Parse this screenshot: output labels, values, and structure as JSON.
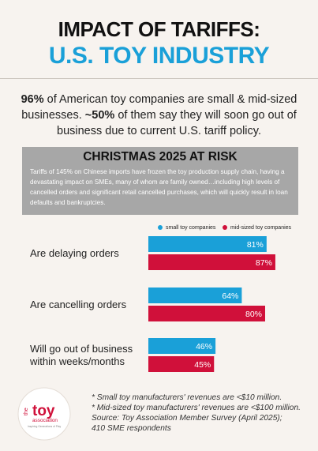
{
  "header": {
    "title_line1": "IMPACT OF TARIFFS:",
    "title_line2": "U.S. TOY INDUSTRY"
  },
  "lead": {
    "stat1": "96%",
    "text1": " of American toy companies are small & mid-sized businesses. ",
    "stat2": "~50%",
    "text2": " of them say they will soon go out of business due to current U.S. tariff policy."
  },
  "panel": {
    "title": "CHRISTMAS 2025 AT RISK",
    "body": "Tariffs of 145% on Chinese imports have frozen the toy production supply chain, having a devastating impact on SMEs, many of whom are family owned…including high levels of cancelled orders and significant retail cancelled purchases, which will quickly result in loan defaults and bankruptcies."
  },
  "colors": {
    "small": "#1aa0d8",
    "mid": "#d0103a",
    "title_blue": "#1aa0d8",
    "panel_bg": "#a7a7a7",
    "background": "#f7f3ef"
  },
  "chart_data": {
    "type": "bar",
    "orientation": "horizontal",
    "categories": [
      "Are delaying orders",
      "Are cancelling orders",
      "Will go out of business within weeks/months"
    ],
    "category_lines": [
      [
        "Are delaying orders"
      ],
      [
        "Are cancelling orders"
      ],
      [
        "Will go out of business",
        "within weeks/months"
      ]
    ],
    "series": [
      {
        "name": "small toy companies",
        "values": [
          81,
          64,
          46
        ],
        "labels": [
          "81%",
          "64%",
          "46%"
        ]
      },
      {
        "name": "mid-sized toy companies",
        "values": [
          87,
          80,
          45
        ],
        "labels": [
          "87%",
          "80%",
          "45%"
        ]
      }
    ],
    "xlim": [
      0,
      100
    ],
    "legend": "top-right",
    "grid": false
  },
  "footnotes": [
    "* Small toy manufacturers' revenues are <$10 million.",
    "* Mid-sized toy manufacturers'  revenues are <$100 million.",
    "Source: Toy Association Member Survey (April 2025);",
    "410 SME respondents"
  ],
  "logo": {
    "word_the": "the",
    "word_toy": "toy",
    "word_association": "association",
    "tagline": "Inspiring Generations of Play"
  }
}
